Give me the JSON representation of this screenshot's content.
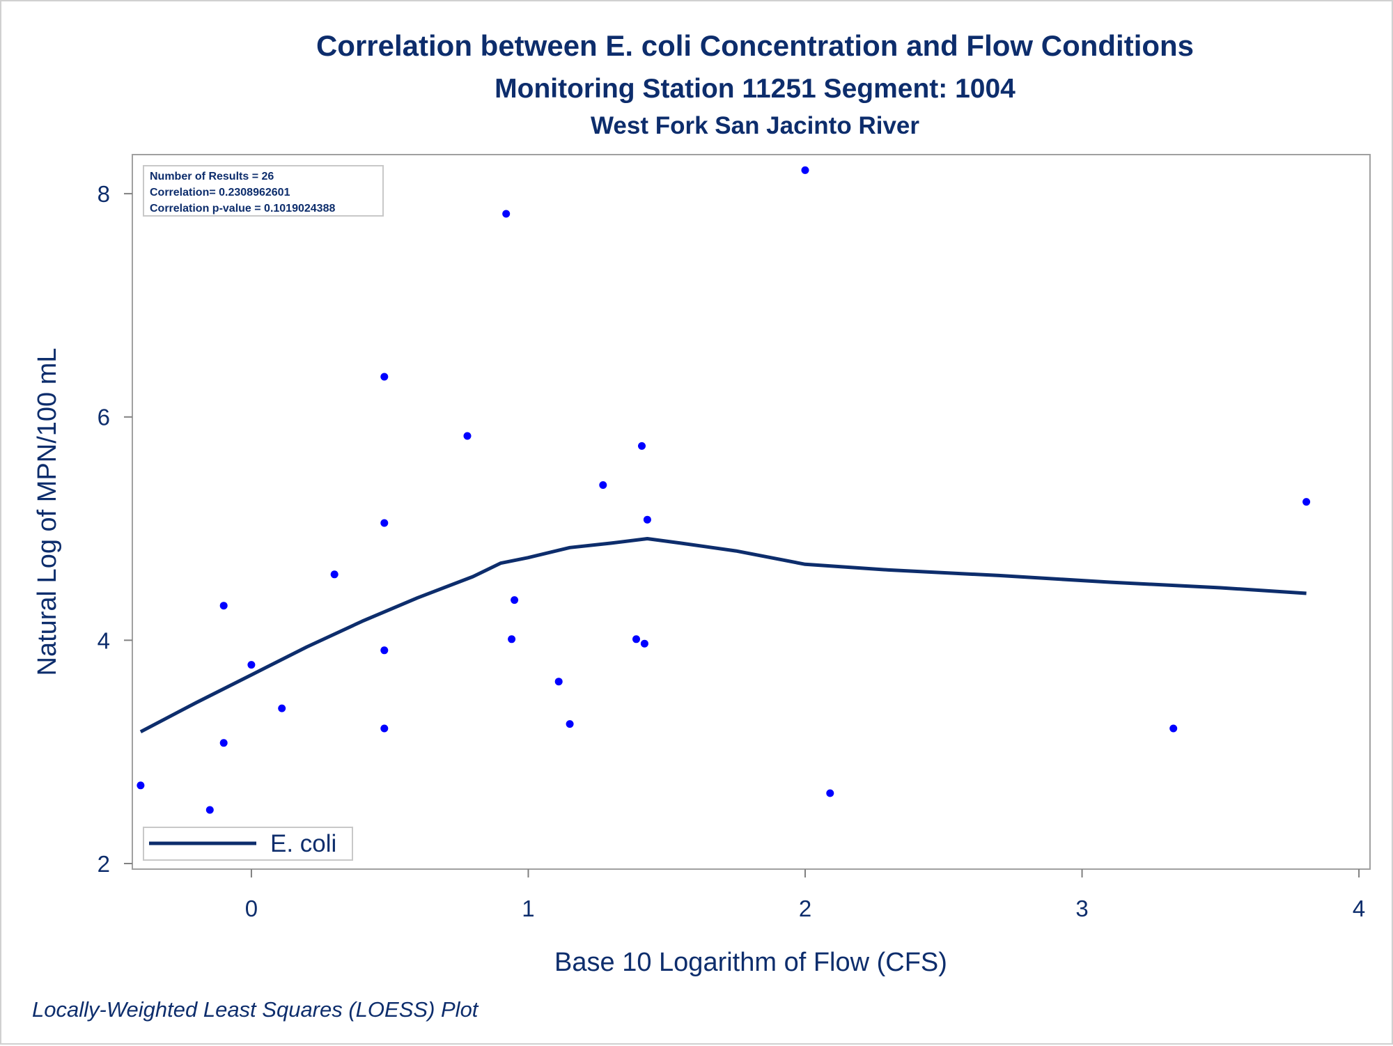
{
  "chart_data": {
    "type": "scatter",
    "title": "Correlation between E. coli Concentration and Flow Conditions",
    "subtitle": "Monitoring Station 11251 Segment: 1004",
    "subtitle2": "West Fork San Jacinto River",
    "xlabel": "Base 10 Logarithm of Flow (CFS)",
    "ylabel": "Natural Log of MPN/100 mL",
    "footnote": "Locally-Weighted Least Squares (LOESS) Plot",
    "xlim": [
      -0.43,
      4.04
    ],
    "ylim": [
      1.95,
      8.35
    ],
    "x_ticks": [
      0,
      1,
      2,
      3,
      4
    ],
    "y_ticks": [
      2,
      4,
      6,
      8
    ],
    "stats": [
      "Number of Results = 26",
      "Correlation= 0.2308962601",
      "Correlation p-value = 0.1019024388"
    ],
    "legend": {
      "label": "E. coli",
      "position": "bottom-left"
    },
    "colors": {
      "points": "#0000ff",
      "line": "#0d2d6c",
      "text": "#0d2d6c",
      "frame": "#a0a0a0"
    },
    "points": [
      {
        "x": -0.4,
        "y": 2.7
      },
      {
        "x": -0.15,
        "y": 2.48
      },
      {
        "x": -0.1,
        "y": 4.31
      },
      {
        "x": -0.1,
        "y": 3.08
      },
      {
        "x": 0.0,
        "y": 3.78
      },
      {
        "x": 0.11,
        "y": 3.39
      },
      {
        "x": 0.3,
        "y": 4.59
      },
      {
        "x": 0.48,
        "y": 6.36
      },
      {
        "x": 0.48,
        "y": 5.05
      },
      {
        "x": 0.48,
        "y": 3.91
      },
      {
        "x": 0.48,
        "y": 3.21
      },
      {
        "x": 0.78,
        "y": 5.83
      },
      {
        "x": 0.92,
        "y": 7.82
      },
      {
        "x": 0.94,
        "y": 4.01
      },
      {
        "x": 0.95,
        "y": 4.36
      },
      {
        "x": 1.11,
        "y": 3.63
      },
      {
        "x": 1.15,
        "y": 3.25
      },
      {
        "x": 1.27,
        "y": 5.39
      },
      {
        "x": 1.39,
        "y": 4.01
      },
      {
        "x": 1.41,
        "y": 5.74
      },
      {
        "x": 1.42,
        "y": 3.97
      },
      {
        "x": 1.43,
        "y": 5.08
      },
      {
        "x": 2.0,
        "y": 8.21
      },
      {
        "x": 2.09,
        "y": 2.63
      },
      {
        "x": 3.33,
        "y": 3.21
      },
      {
        "x": 3.81,
        "y": 5.24
      }
    ],
    "loess": [
      {
        "x": -0.4,
        "y": 3.18
      },
      {
        "x": -0.2,
        "y": 3.44
      },
      {
        "x": 0.0,
        "y": 3.69
      },
      {
        "x": 0.2,
        "y": 3.94
      },
      {
        "x": 0.4,
        "y": 4.17
      },
      {
        "x": 0.6,
        "y": 4.38
      },
      {
        "x": 0.8,
        "y": 4.57
      },
      {
        "x": 0.9,
        "y": 4.69
      },
      {
        "x": 1.0,
        "y": 4.74
      },
      {
        "x": 1.15,
        "y": 4.83
      },
      {
        "x": 1.3,
        "y": 4.87
      },
      {
        "x": 1.43,
        "y": 4.91
      },
      {
        "x": 1.55,
        "y": 4.87
      },
      {
        "x": 1.75,
        "y": 4.8
      },
      {
        "x": 2.0,
        "y": 4.68
      },
      {
        "x": 2.3,
        "y": 4.63
      },
      {
        "x": 2.7,
        "y": 4.58
      },
      {
        "x": 3.1,
        "y": 4.52
      },
      {
        "x": 3.5,
        "y": 4.47
      },
      {
        "x": 3.81,
        "y": 4.42
      }
    ]
  }
}
